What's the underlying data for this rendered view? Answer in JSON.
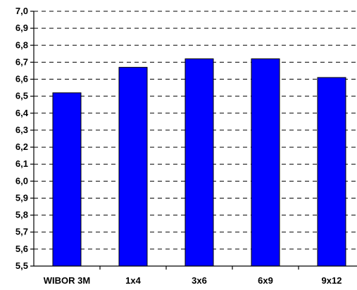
{
  "chart_data": {
    "type": "bar",
    "categories": [
      "WIBOR 3M",
      "1x4",
      "3x6",
      "6x9",
      "9x12"
    ],
    "values": [
      6.52,
      6.67,
      6.72,
      6.72,
      6.61
    ],
    "title": "",
    "xlabel": "",
    "ylabel": "",
    "ylim": [
      5.5,
      7.0
    ],
    "ytick_step": 0.1,
    "ytick_labels": [
      "5,5",
      "5,6",
      "5,7",
      "5,8",
      "5,9",
      "6,0",
      "6,1",
      "6,2",
      "6,3",
      "6,4",
      "6,5",
      "6,6",
      "6,7",
      "6,8",
      "6,9",
      "7,0"
    ],
    "grid": "horizontal dashed",
    "legend": "none",
    "bar_color": "#0000ff"
  }
}
